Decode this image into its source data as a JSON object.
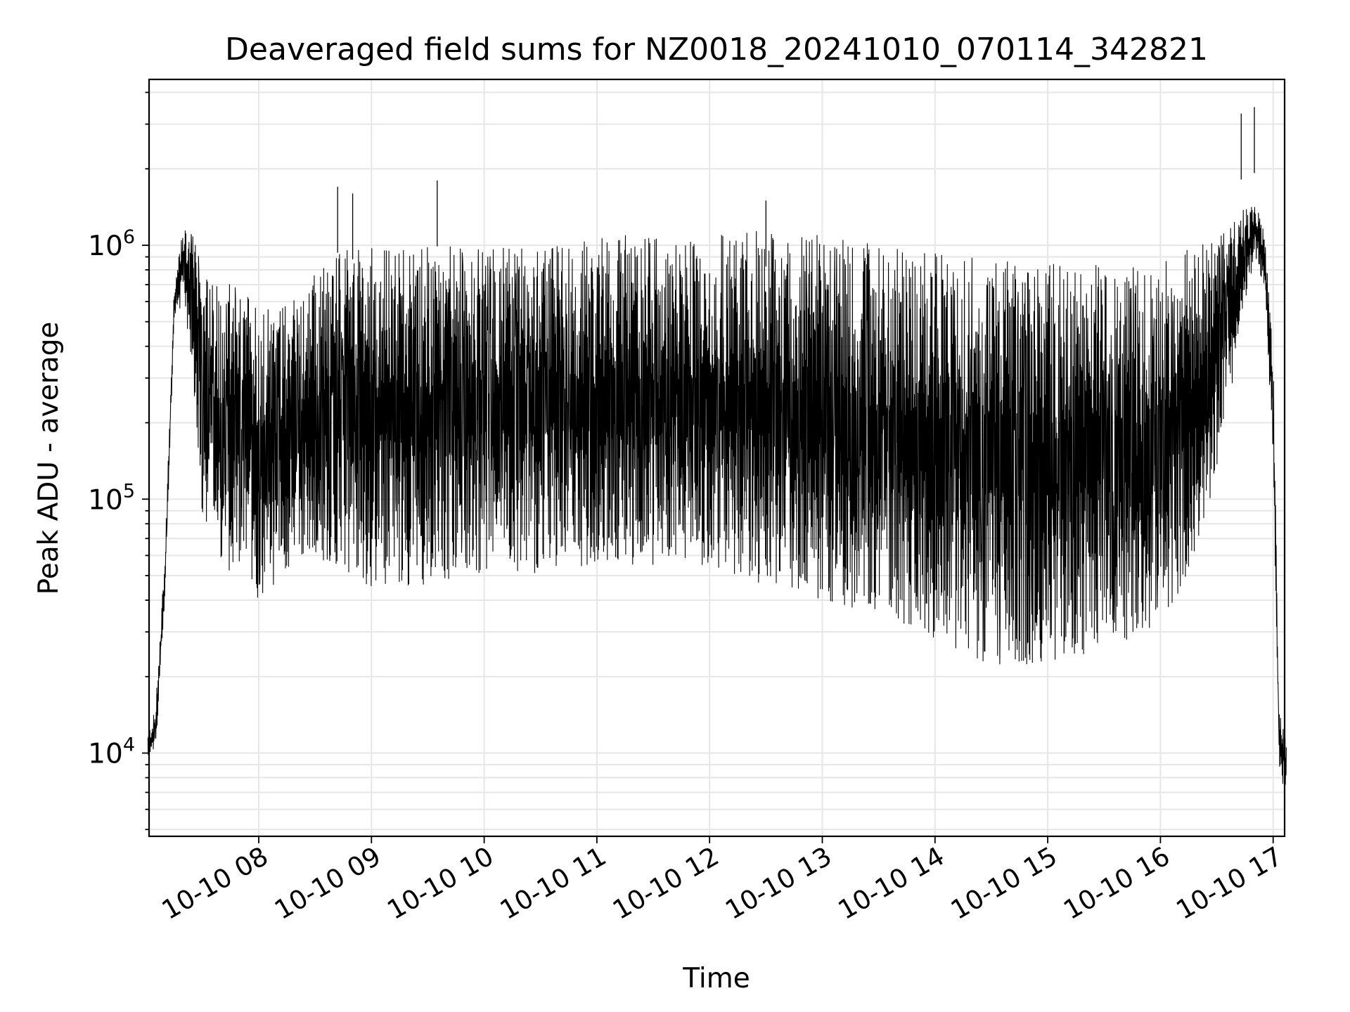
{
  "chart_data": {
    "type": "line",
    "title": "Deaveraged field sums for NZ0018_20241010_070114_342821",
    "xlabel": "Time",
    "ylabel": "Peak ADU - average",
    "yscale": "log",
    "grid": true,
    "legend": "none",
    "xlim": [
      "2024-10-10 07:01",
      "2024-10-10 17:07"
    ],
    "ylim": [
      4700,
      4500000
    ],
    "x_ticks": [
      "10-10 08",
      "10-10 09",
      "10-10 10",
      "10-10 11",
      "10-10 12",
      "10-10 13",
      "10-10 14",
      "10-10 15",
      "10-10 16",
      "10-10 17"
    ],
    "y_ticks": [
      {
        "value": 10000,
        "base": "10",
        "exp": "4"
      },
      {
        "value": 100000,
        "base": "10",
        "exp": "5"
      },
      {
        "value": 1000000,
        "base": "10",
        "exp": "6"
      }
    ],
    "envelope": {
      "time": [
        "2024-10-10 07:01",
        "2024-10-10 07:05",
        "2024-10-10 07:10",
        "2024-10-10 07:15",
        "2024-10-10 07:20",
        "2024-10-10 07:25",
        "2024-10-10 07:30",
        "2024-10-10 07:45",
        "2024-10-10 08:00",
        "2024-10-10 08:15",
        "2024-10-10 08:30",
        "2024-10-10 08:45",
        "2024-10-10 09:00",
        "2024-10-10 09:30",
        "2024-10-10 10:00",
        "2024-10-10 10:30",
        "2024-10-10 11:00",
        "2024-10-10 11:30",
        "2024-10-10 12:00",
        "2024-10-10 12:30",
        "2024-10-10 13:00",
        "2024-10-10 13:30",
        "2024-10-10 14:00",
        "2024-10-10 14:30",
        "2024-10-10 15:00",
        "2024-10-10 15:30",
        "2024-10-10 16:00",
        "2024-10-10 16:20",
        "2024-10-10 16:40",
        "2024-10-10 16:50",
        "2024-10-10 16:55",
        "2024-10-10 17:00",
        "2024-10-10 17:03",
        "2024-10-10 17:07"
      ],
      "upper": [
        12000,
        15000,
        60000,
        700000,
        1200000,
        1100000,
        800000,
        700000,
        650000,
        600000,
        800000,
        950000,
        1000000,
        1000000,
        1000000,
        1000000,
        1100000,
        1100000,
        1100000,
        1150000,
        1100000,
        1000000,
        950000,
        900000,
        850000,
        850000,
        900000,
        1000000,
        1300000,
        1500000,
        1200000,
        400000,
        15000,
        13000
      ],
      "lower": [
        9000,
        10000,
        40000,
        500000,
        600000,
        300000,
        80000,
        50000,
        40000,
        50000,
        60000,
        50000,
        45000,
        45000,
        50000,
        50000,
        55000,
        55000,
        55000,
        45000,
        40000,
        35000,
        28000,
        22000,
        22000,
        25000,
        30000,
        60000,
        300000,
        900000,
        700000,
        150000,
        9000,
        6000
      ]
    },
    "spikes": [
      {
        "time": "2024-10-10 08:42",
        "value": 1700000
      },
      {
        "time": "2024-10-10 08:50",
        "value": 1600000
      },
      {
        "time": "2024-10-10 09:35",
        "value": 1800000
      },
      {
        "time": "2024-10-10 12:30",
        "value": 1500000
      },
      {
        "time": "2024-10-10 16:43",
        "value": 3300000
      },
      {
        "time": "2024-10-10 16:50",
        "value": 3500000
      }
    ],
    "series_color": "#000000",
    "grid_color": "#e6e6e6"
  }
}
